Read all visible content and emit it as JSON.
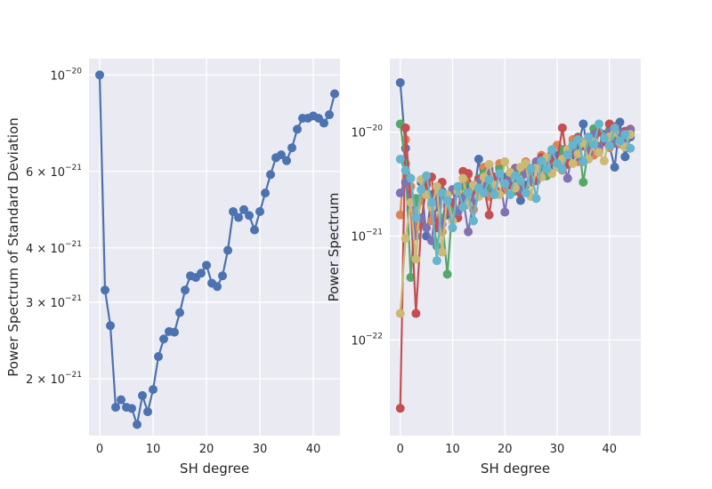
{
  "chart_data": [
    {
      "type": "line",
      "xlabel": "SH degree",
      "ylabel": "Power Spectrum of Standard Deviation",
      "yscale": "log",
      "xlim": [
        -2,
        45
      ],
      "ylim": [
        1.48e-21,
        1.09e-20
      ],
      "grid": true,
      "x_ticks": [
        {
          "value": 0,
          "label": "0"
        },
        {
          "value": 10,
          "label": "10"
        },
        {
          "value": 20,
          "label": "20"
        },
        {
          "value": 30,
          "label": "30"
        },
        {
          "value": 40,
          "label": "40"
        }
      ],
      "y_ticks": [
        {
          "value": 1e-20,
          "base": "10",
          "exp": "−20"
        },
        {
          "value": 6e-21,
          "base": "6 × 10",
          "exp": "−21"
        },
        {
          "value": 4e-21,
          "base": "4 × 10",
          "exp": "−21"
        },
        {
          "value": 3e-21,
          "base": "3 × 10",
          "exp": "−21"
        },
        {
          "value": 2e-21,
          "base": "2 × 10",
          "exp": "−21"
        }
      ],
      "series": [
        {
          "color": "#4c72b0",
          "x": [
            0,
            1,
            2,
            3,
            4,
            5,
            6,
            7,
            8,
            9,
            10,
            11,
            12,
            13,
            14,
            15,
            16,
            17,
            18,
            19,
            20,
            21,
            22,
            23,
            24,
            25,
            26,
            27,
            28,
            29,
            30,
            31,
            32,
            33,
            34,
            35,
            36,
            37,
            38,
            39,
            40,
            41,
            42,
            43,
            44
          ],
          "y": [
            1e-20,
            3.2e-21,
            2.65e-21,
            1.72e-21,
            1.79e-21,
            1.72e-21,
            1.71e-21,
            1.57e-21,
            1.83e-21,
            1.68e-21,
            1.89e-21,
            2.25e-21,
            2.47e-21,
            2.57e-21,
            2.56e-21,
            2.84e-21,
            3.2e-21,
            3.45e-21,
            3.42e-21,
            3.5e-21,
            3.65e-21,
            3.32e-21,
            3.26e-21,
            3.45e-21,
            3.95e-21,
            4.85e-21,
            4.7e-21,
            4.9e-21,
            4.75e-21,
            4.4e-21,
            4.85e-21,
            5.35e-21,
            5.9e-21,
            6.45e-21,
            6.55e-21,
            6.35e-21,
            6.8e-21,
            7.5e-21,
            7.95e-21,
            7.95e-21,
            8.05e-21,
            7.95e-21,
            7.75e-21,
            8.1e-21,
            9.05e-21
          ]
        }
      ]
    },
    {
      "type": "line",
      "xlabel": "SH degree",
      "ylabel": "Power Spectrum",
      "yscale": "log",
      "xlim": [
        -2,
        46
      ],
      "ylim": [
        1.2e-23,
        5.1e-20
      ],
      "grid": true,
      "x_ticks": [
        {
          "value": 0,
          "label": "0"
        },
        {
          "value": 10,
          "label": "10"
        },
        {
          "value": 20,
          "label": "20"
        },
        {
          "value": 30,
          "label": "30"
        },
        {
          "value": 40,
          "label": "40"
        }
      ],
      "y_ticks": [
        {
          "value": 1e-20,
          "base": "10",
          "exp": "−20"
        },
        {
          "value": 1e-21,
          "base": "10",
          "exp": "−21"
        },
        {
          "value": 1e-22,
          "base": "10",
          "exp": "−22"
        }
      ],
      "series": [
        {
          "color": "#4c72b0",
          "x": [
            0,
            1,
            2,
            3,
            4,
            5,
            6,
            7,
            8,
            9,
            10,
            11,
            12,
            13,
            14,
            15,
            16,
            17,
            18,
            19,
            20,
            21,
            22,
            23,
            24,
            25,
            26,
            27,
            28,
            29,
            30,
            31,
            32,
            33,
            34,
            35,
            36,
            37,
            38,
            39,
            40,
            41,
            42,
            43,
            44
          ],
          "y": [
            3e-20,
            7e-21,
            1.8e-21,
            1.2e-21,
            3.3e-21,
            1e-21,
            2.5e-21,
            1.9e-21,
            2.7e-21,
            1.6e-21,
            1.7e-21,
            2.6e-21,
            2.1e-21,
            3.2e-21,
            2.3e-21,
            5.5e-21,
            2.6e-21,
            4.1e-21,
            3e-21,
            4.6e-21,
            3.7e-21,
            3.3e-21,
            3.6e-21,
            2.2e-21,
            3.1e-21,
            4e-21,
            4.8e-21,
            4.2e-21,
            5.3e-21,
            4.5e-21,
            6e-21,
            5.5e-21,
            6.6e-21,
            5.8e-21,
            7.2e-21,
            1.2e-20,
            6e-21,
            8.8e-21,
            6.6e-21,
            9.5e-21,
            7.4e-21,
            4.6e-21,
            1.25e-20,
            5.8e-21,
            9e-21
          ]
        },
        {
          "color": "#dd8452",
          "x": [
            0,
            1,
            2,
            3,
            4,
            5,
            6,
            7,
            8,
            9,
            10,
            11,
            12,
            13,
            14,
            15,
            16,
            17,
            18,
            19,
            20,
            21,
            22,
            23,
            24,
            25,
            26,
            27,
            28,
            29,
            30,
            31,
            32,
            33,
            34,
            35,
            36,
            37,
            38,
            39,
            40,
            41,
            42,
            43,
            44
          ],
          "y": [
            1.6e-21,
            8.5e-21,
            3e-21,
            1.2e-21,
            2.2e-21,
            3.3e-21,
            1.4e-21,
            2.6e-21,
            1.1e-21,
            1.9e-21,
            2.8e-21,
            1.5e-21,
            2.4e-21,
            3.9e-21,
            1.8e-21,
            3e-21,
            4.6e-21,
            2.4e-21,
            3.2e-21,
            5e-21,
            2.8e-21,
            3.9e-21,
            4.4e-21,
            3.1e-21,
            5.2e-21,
            3.5e-21,
            4.9e-21,
            6e-21,
            4e-21,
            5.4e-21,
            7.5e-21,
            4.3e-21,
            6.3e-21,
            8.5e-21,
            5.2e-21,
            7.6e-21,
            8.2e-21,
            6e-21,
            1e-20,
            8e-21,
            7.1e-21,
            1.08e-20,
            7.7e-21,
            8.8e-21,
            1e-20
          ]
        },
        {
          "color": "#55a868",
          "x": [
            0,
            1,
            2,
            3,
            4,
            5,
            6,
            7,
            8,
            9,
            10,
            11,
            12,
            13,
            14,
            15,
            16,
            17,
            18,
            19,
            20,
            21,
            22,
            23,
            24,
            25,
            26,
            27,
            28,
            29,
            30,
            31,
            32,
            33,
            34,
            35,
            36,
            37,
            38,
            39,
            40,
            41,
            42,
            43,
            44
          ],
          "y": [
            1.2e-20,
            5e-21,
            4e-22,
            2.3e-21,
            1.3e-21,
            3.6e-21,
            2e-21,
            8e-22,
            1.5e-21,
            4.3e-22,
            2e-21,
            1.7e-21,
            3.1e-21,
            2.1e-21,
            2.6e-21,
            3.6e-21,
            4e-21,
            2.9e-21,
            3.4e-21,
            4.4e-21,
            3.2e-21,
            3.7e-21,
            2.7e-21,
            4.2e-21,
            5e-21,
            3.6e-21,
            4.7e-21,
            4.9e-21,
            3.8e-21,
            5.5e-21,
            4.8e-21,
            6.8e-21,
            5.1e-21,
            7.6e-21,
            9e-21,
            3.3e-21,
            7e-21,
            1.08e-20,
            7.3e-21,
            9.2e-21,
            1.05e-20,
            8.4e-21,
            9.5e-21,
            7.9e-21,
            1.05e-20
          ]
        },
        {
          "color": "#c44e52",
          "x": [
            0,
            1,
            2,
            3,
            4,
            5,
            6,
            7,
            8,
            9,
            10,
            11,
            12,
            13,
            14,
            15,
            16,
            17,
            18,
            19,
            20,
            21,
            22,
            23,
            24,
            25,
            26,
            27,
            28,
            29,
            30,
            31,
            32,
            33,
            34,
            35,
            36,
            37,
            38,
            39,
            40,
            41,
            42,
            43,
            44
          ],
          "y": [
            2.2e-23,
            1.1e-20,
            2e-21,
            1.8e-22,
            1.3e-21,
            3.1e-21,
            3.7e-21,
            1.2e-21,
            3.3e-21,
            1.7e-21,
            2.1e-21,
            1.5e-21,
            4.2e-21,
            4e-21,
            2.4e-21,
            3.5e-21,
            3e-21,
            1.6e-21,
            3.7e-21,
            2.6e-21,
            3.3e-21,
            3.1e-21,
            4.5e-21,
            2.6e-21,
            4.1e-21,
            3.8e-21,
            3.4e-21,
            5.7e-21,
            4.5e-21,
            5.6e-21,
            5.2e-21,
            1.1e-20,
            4.9e-21,
            6.6e-21,
            8.8e-21,
            7.4e-21,
            6.5e-21,
            9.4e-21,
            1e-20,
            8.2e-21,
            1.2e-20,
            1.13e-20,
            8.6e-21,
            1.02e-20,
            1.07e-20
          ]
        },
        {
          "color": "#8172b3",
          "x": [
            0,
            1,
            2,
            3,
            4,
            5,
            6,
            7,
            8,
            9,
            10,
            11,
            12,
            13,
            14,
            15,
            16,
            17,
            18,
            19,
            20,
            21,
            22,
            23,
            24,
            25,
            26,
            27,
            28,
            29,
            30,
            31,
            32,
            33,
            34,
            35,
            36,
            37,
            38,
            39,
            40,
            41,
            42,
            43,
            44
          ],
          "y": [
            2.6e-21,
            3.3e-21,
            2e-21,
            1e-21,
            1.5e-21,
            1.2e-21,
            9e-22,
            2.3e-21,
            1.3e-21,
            2e-21,
            2.8e-21,
            1.7e-21,
            2.3e-21,
            1.1e-21,
            2.2e-21,
            3.3e-21,
            3e-21,
            4.4e-21,
            2.7e-21,
            3.9e-21,
            1.7e-21,
            3.6e-21,
            4.4e-21,
            2.8e-21,
            4e-21,
            3.3e-21,
            5.2e-21,
            3.9e-21,
            4.8e-21,
            6.3e-21,
            5e-21,
            5.6e-21,
            3.6e-21,
            6.9e-21,
            5.8e-21,
            8e-21,
            6.3e-21,
            9.5e-21,
            7.2e-21,
            8.6e-21,
            1e-20,
            7.8e-21,
            9.8e-21,
            8e-21,
            1.05e-20
          ]
        },
        {
          "color": "#ccb974",
          "x": [
            0,
            1,
            2,
            3,
            4,
            5,
            6,
            7,
            8,
            9,
            10,
            11,
            12,
            13,
            14,
            15,
            16,
            17,
            18,
            19,
            20,
            21,
            22,
            23,
            24,
            25,
            26,
            27,
            28,
            29,
            30,
            31,
            32,
            33,
            34,
            35,
            36,
            37,
            38,
            39,
            40,
            41,
            42,
            43,
            44
          ],
          "y": [
            1.8e-22,
            9.5e-22,
            2.1e-21,
            6e-22,
            3.5e-21,
            2.5e-21,
            1.9e-21,
            3e-21,
            7e-22,
            2.5e-21,
            1.4e-21,
            2.7e-21,
            3.6e-21,
            2e-21,
            3.1e-21,
            2.4e-21,
            3.7e-21,
            4.9e-21,
            3.1e-21,
            2.5e-21,
            5.2e-21,
            4.1e-21,
            2.9e-21,
            4.6e-21,
            5e-21,
            2.4e-21,
            4.5e-21,
            3.7e-21,
            5.7e-21,
            4e-21,
            4.6e-21,
            5.5e-21,
            6.8e-21,
            5e-21,
            6.2e-21,
            7.9e-21,
            5.5e-21,
            8.1e-21,
            6.4e-21,
            5.3e-21,
            9e-21,
            1e-20,
            8e-21,
            7.2e-21,
            9.5e-21
          ]
        },
        {
          "color": "#64b5cd",
          "x": [
            0,
            1,
            2,
            3,
            4,
            5,
            6,
            7,
            8,
            9,
            10,
            11,
            12,
            13,
            14,
            15,
            16,
            17,
            18,
            19,
            20,
            21,
            22,
            23,
            24,
            25,
            26,
            27,
            28,
            29,
            30,
            31,
            32,
            33,
            34,
            35,
            36,
            37,
            38,
            39,
            40,
            41,
            42,
            43,
            44
          ],
          "y": [
            5.5e-21,
            4.3e-21,
            3.6e-21,
            1.5e-21,
            2.8e-21,
            3.8e-21,
            2.1e-21,
            5.8e-22,
            2.6e-21,
            2.2e-21,
            1.2e-21,
            3e-21,
            1.9e-21,
            2.6e-21,
            1.4e-21,
            2.9e-21,
            2.6e-21,
            3.5e-21,
            2.5e-21,
            4e-21,
            3.2e-21,
            2.5e-21,
            3.8e-21,
            3.4e-21,
            2.6e-21,
            4.5e-21,
            2.3e-21,
            5.3e-21,
            4.4e-21,
            6.8e-21,
            5e-21,
            4.4e-21,
            6.1e-21,
            7.5e-21,
            8.5e-21,
            5.2e-21,
            9e-21,
            7.6e-21,
            1.2e-20,
            8.8e-21,
            7.4e-21,
            1.1e-20,
            8.2e-21,
            9.5e-21,
            7e-21
          ]
        }
      ]
    }
  ]
}
